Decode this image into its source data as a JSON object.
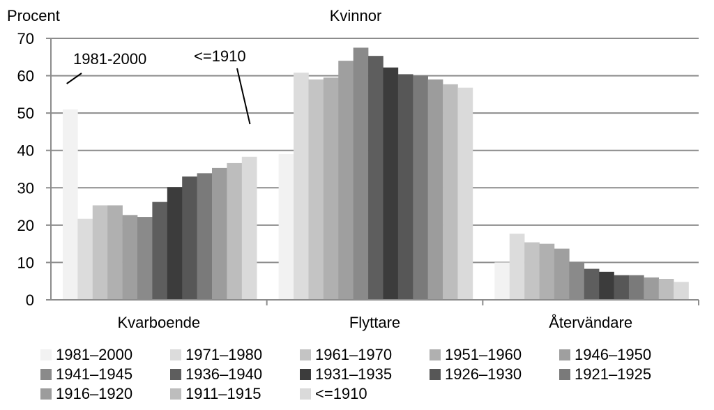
{
  "chart_data": {
    "type": "bar",
    "title": "Kvinnor",
    "ylabel": "Procent",
    "xlabel": "",
    "ylim": [
      0,
      70
    ],
    "yticks": [
      0,
      10,
      20,
      30,
      40,
      50,
      60,
      70
    ],
    "grid": true,
    "legend_position": "bottom",
    "categories": [
      "Kvarboende",
      "Flyttare",
      "Återvändare"
    ],
    "series": [
      {
        "name": "1981–2000",
        "color": "#f2f2f2",
        "values": [
          51,
          39,
          10
        ]
      },
      {
        "name": "1971–1980",
        "color": "#dcdcdc",
        "values": [
          21.7,
          60.8,
          17.7
        ]
      },
      {
        "name": "1961–1970",
        "color": "#c4c4c4",
        "values": [
          25.3,
          59,
          15.4
        ]
      },
      {
        "name": "1951–1960",
        "color": "#b0b0b0",
        "values": [
          25.3,
          59.5,
          15
        ]
      },
      {
        "name": "1946–1950",
        "color": "#9f9f9f",
        "values": [
          22.7,
          64,
          13.7
        ]
      },
      {
        "name": "1941–1945",
        "color": "#8a8a8a",
        "values": [
          22.2,
          67.5,
          10.2
        ]
      },
      {
        "name": "1936–1940",
        "color": "#5e5e5e",
        "values": [
          26.2,
          65.3,
          8.3
        ]
      },
      {
        "name": "1931–1935",
        "color": "#3c3c3c",
        "values": [
          30.2,
          62.2,
          7.5
        ]
      },
      {
        "name": "1926–1930",
        "color": "#575757",
        "values": [
          33,
          60.4,
          6.6
        ]
      },
      {
        "name": "1921–1925",
        "color": "#7a7a7a",
        "values": [
          33.9,
          60,
          6.6
        ]
      },
      {
        "name": "1916–1920",
        "color": "#9c9c9c",
        "values": [
          35.3,
          59,
          6
        ]
      },
      {
        "name": "1911–1915",
        "color": "#bdbdbd",
        "values": [
          36.6,
          57.7,
          5.6
        ]
      },
      {
        "name": "<=1910",
        "color": "#dadada",
        "values": [
          38.3,
          56.8,
          4.8
        ]
      }
    ],
    "annotations": [
      {
        "text": "1981-2000",
        "points_to_series": "1981–2000",
        "category": "Kvarboende"
      },
      {
        "text": "<=1910",
        "points_to_series": "<=1910",
        "category": "Kvarboende"
      }
    ]
  }
}
